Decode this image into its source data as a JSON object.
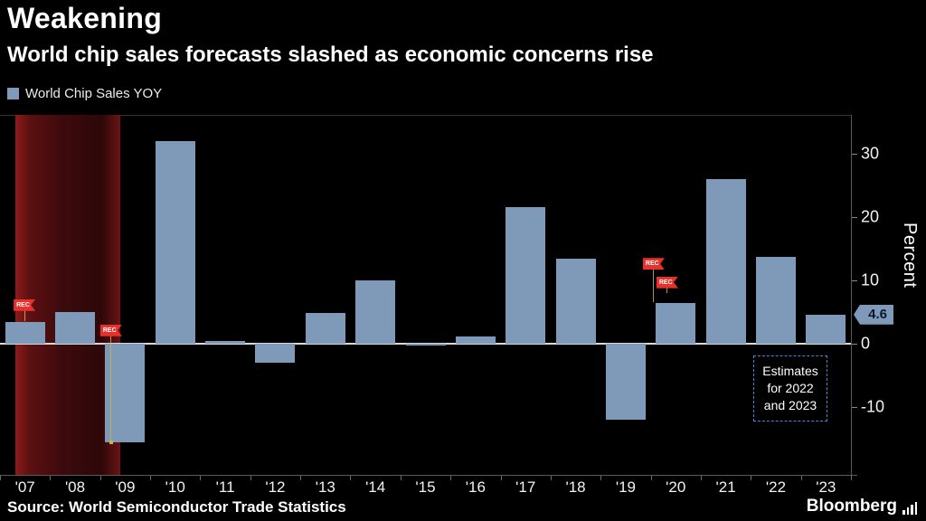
{
  "header": {
    "title": "Weakening",
    "subtitle": "World chip sales forecasts slashed as economic concerns rise"
  },
  "legend": {
    "label": "World Chip Sales YOY"
  },
  "chart_data": {
    "type": "bar",
    "title": "Weakening",
    "subtitle": "World chip sales forecasts slashed as economic concerns rise",
    "series_name": "World Chip Sales YOY",
    "categories": [
      "'07",
      "'08",
      "'09",
      "'10",
      "'11",
      "'12",
      "'13",
      "'14",
      "'15",
      "'16",
      "'17",
      "'18",
      "'19",
      "'20",
      "'21",
      "'22",
      "'23"
    ],
    "values": [
      3.5,
      5,
      -15.5,
      32,
      0.4,
      -3,
      4.8,
      10,
      -0.3,
      1.2,
      21.6,
      13.5,
      -12,
      6.5,
      26,
      13.7,
      4.6
    ],
    "ylabel": "Percent",
    "y_ticks": [
      30,
      20,
      10,
      0,
      -10
    ],
    "ylim": [
      -21,
      36
    ],
    "grid": false,
    "legend_position": "top-left",
    "bar_color": "#7f99b8",
    "last_value_label": "4.6",
    "recession_band": {
      "start_slot": 0.3,
      "end_slot": 2.4,
      "color": "#5c1012"
    },
    "rec_flags": [
      {
        "label": "REC",
        "slot": 0.49,
        "value": 6.1,
        "pole_to": 3.5
      },
      {
        "label": "REC",
        "slot": 2.22,
        "value": 2.1,
        "pole_to": -15.5,
        "dot": true
      },
      {
        "label": "REC",
        "slot": 13.06,
        "value": 12.6,
        "pole_to": 6.5
      },
      {
        "label": "REC",
        "slot": 13.33,
        "value": 9.7,
        "pole_to": 8
      }
    ],
    "estimates_note": "Estimates\nfor 2022\nand 2023",
    "note_border_color": "#4f82d8",
    "flag_color": "#e8312a"
  },
  "footer": {
    "source": "Source: World Semiconductor Trade Statistics",
    "brand": "Bloomberg"
  }
}
